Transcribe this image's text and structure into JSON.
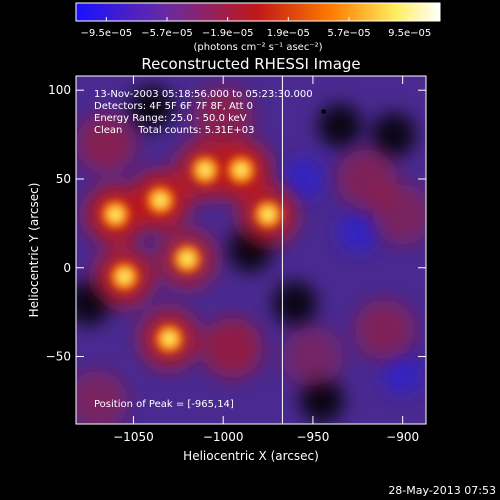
{
  "chart_data": {
    "type": "heatmap",
    "title": "Reconstructed RHESSI Image",
    "xlabel": "Heliocentric X (arcsec)",
    "ylabel": "Heliocentric Y (arcsec)",
    "xlim": [
      -1082,
      -887
    ],
    "ylim": [
      -88,
      108
    ],
    "x_ticks": [
      {
        "value": -1050,
        "label": "−1050"
      },
      {
        "value": -1000,
        "label": "−1000"
      },
      {
        "value": -950,
        "label": "−950"
      },
      {
        "value": -900,
        "label": "−900"
      }
    ],
    "y_ticks": [
      {
        "value": -50,
        "label": "−50"
      },
      {
        "value": 0,
        "label": "0"
      },
      {
        "value": 50,
        "label": "50"
      },
      {
        "value": 100,
        "label": "100"
      }
    ],
    "colorbar": {
      "range": [
        -9.5e-05,
        9.5e-05
      ],
      "tick_labels": [
        "−9.5e−05",
        "−5.7e−05",
        "−1.9e−05",
        "1.9e−05",
        "5.7e−05",
        "9.5e−05"
      ],
      "unit_label": "(photons cm⁻² s⁻¹ asec⁻²)",
      "colors": [
        "#1a10c8",
        "#6a2a9a",
        "#b81818",
        "#ff7a00",
        "#ffffb0",
        "#ffffff"
      ]
    },
    "annotations": [
      "13-Nov-2003 05:18:56.000 to 05:23:30.000",
      "Detectors: 4F 5F 6F 7F 8F, Att 0",
      "Energy Range: 25.0 - 50.0 keV",
      "Clean     Total counts: 5.31E+03"
    ],
    "peak_label": "Position of Peak = [-965,14]",
    "peak": {
      "x": -965,
      "y": 14
    },
    "limb_x": -967,
    "bright_regions": [
      {
        "x": -1060,
        "y": 30,
        "a": 0.9
      },
      {
        "x": -1035,
        "y": 38,
        "a": 0.9
      },
      {
        "x": -1010,
        "y": 55,
        "a": 0.8
      },
      {
        "x": -1055,
        "y": -5,
        "a": 0.85
      },
      {
        "x": -1020,
        "y": 5,
        "a": 0.7
      },
      {
        "x": -990,
        "y": 55,
        "a": 0.9
      },
      {
        "x": -975,
        "y": 30,
        "a": 0.8
      },
      {
        "x": -1030,
        "y": -40,
        "a": 0.8
      },
      {
        "x": -995,
        "y": -45,
        "a": 0.6
      },
      {
        "x": -1000,
        "y": 85,
        "a": 0.5
      },
      {
        "x": -1065,
        "y": 70,
        "a": 0.5
      },
      {
        "x": -920,
        "y": 50,
        "a": 0.45
      },
      {
        "x": -900,
        "y": 30,
        "a": 0.4
      },
      {
        "x": -910,
        "y": -35,
        "a": 0.45
      },
      {
        "x": -950,
        "y": -50,
        "a": 0.35
      },
      {
        "x": -1070,
        "y": -75,
        "a": 0.4
      }
    ]
  },
  "footer": {
    "timestamp": "28-May-2013 07:53"
  }
}
